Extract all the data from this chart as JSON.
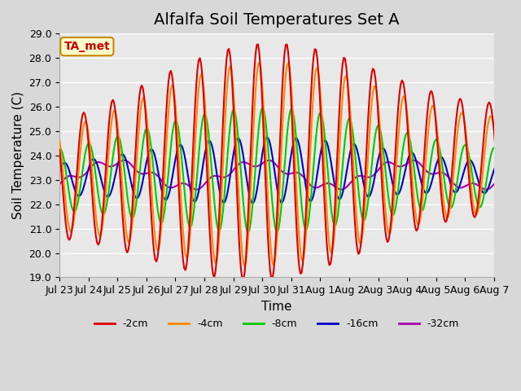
{
  "title": "Alfalfa Soil Temperatures Set A",
  "xlabel": "Time",
  "ylabel": "Soil Temperature (C)",
  "ylim": [
    19.0,
    29.0
  ],
  "yticks": [
    19.0,
    20.0,
    21.0,
    22.0,
    23.0,
    24.0,
    25.0,
    26.0,
    27.0,
    28.0,
    29.0
  ],
  "xtick_labels": [
    "Jul 23",
    "Jul 24",
    "Jul 25",
    "Jul 26",
    "Jul 27",
    "Jul 28",
    "Jul 29",
    "Jul 30",
    "Jul 31",
    "Aug 1",
    "Aug 2",
    "Aug 3",
    "Aug 4",
    "Aug 5",
    "Aug 6",
    "Aug 7"
  ],
  "colors": {
    "-2cm": "#dd0000",
    "-4cm": "#ff8800",
    "-8cm": "#00cc00",
    "-16cm": "#0000cc",
    "-32cm": "#aa00aa"
  },
  "legend_labels": [
    "-2cm",
    "-4cm",
    "-8cm",
    "-16cm",
    "-32cm"
  ],
  "annotation_text": "TA_met",
  "annotation_bg": "#ffffcc",
  "annotation_border": "#cc8800",
  "fig_bg": "#d8d8d8",
  "plot_bg": "#e8e8e8",
  "grid_color": "#ffffff",
  "title_fontsize": 14,
  "axis_fontsize": 11,
  "tick_fontsize": 9,
  "n_days": 16,
  "n_points_per_day": 24
}
